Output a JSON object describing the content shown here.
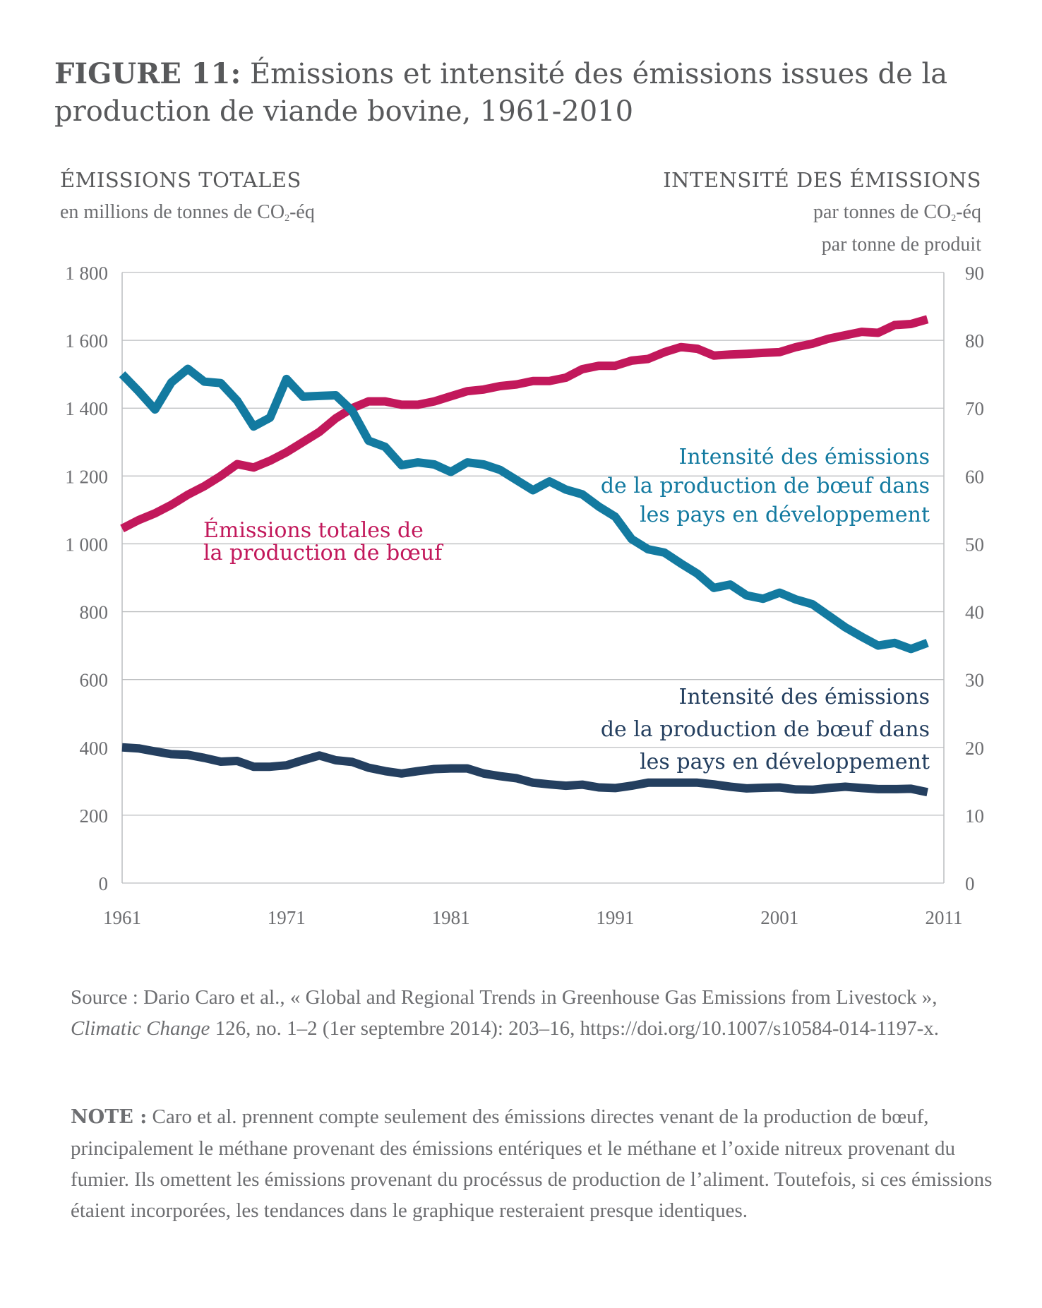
{
  "title_prefix": "FIGURE 11:",
  "title_main": "Émissions et intensité des émissions issues de la production de viande bovine, 1961-2010",
  "left_axis": {
    "heading": "ÉMISSIONS TOTALES",
    "unit_before": "en millions de tonnes de CO",
    "unit_sub": "2",
    "unit_after": "-éq"
  },
  "right_axis": {
    "heading": "INTENSITÉ DES ÉMISSIONS",
    "unit_line1_before": "par tonnes de CO",
    "unit_line1_sub": "2",
    "unit_line1_after": "-éq",
    "unit_line2": "par tonne de produit"
  },
  "source": {
    "prefix": "Source : Dario Caro et al., « Global and Regional Trends in Greenhouse Gas Emissions from Livestock », ",
    "journal": "Climatic Change",
    "suffix": " 126, no. 1–2 (1er septembre 2014): 203–16, https://doi.org/10.1007/s10584-014-1197-x."
  },
  "note": {
    "label": "NOTE :",
    "text": " Caro et al. prennent compte seulement des émissions directes venant de la production de bœuf, principalement le méthane provenant des émissions entériques et le méthane et l’oxide nitreux provenant du fumier. Ils omettent les émissions provenant du procéssus de production de l’aliment. Toutefois, si ces émissions étaient incorporées, les tendances dans le graphique resteraient presque identiques."
  },
  "chart_data": {
    "type": "line",
    "x_ticks": [
      "1961",
      "1971",
      "1981",
      "1991",
      "2001",
      "2011"
    ],
    "xlim": [
      1961,
      2011
    ],
    "y_left": {
      "ylim": [
        0,
        1800
      ],
      "ticks": [
        "0",
        "200",
        "400",
        "600",
        "800",
        "1 000",
        "1 200",
        "1 400",
        "1 600",
        "1 800"
      ]
    },
    "y_right": {
      "ylim": [
        0,
        90
      ],
      "ticks": [
        "0",
        "10",
        "20",
        "30",
        "40",
        "50",
        "60",
        "70",
        "80",
        "90"
      ]
    },
    "grid": true,
    "colors": {
      "total": "#c2185b",
      "developing": "#137aa0",
      "developed": "#243f5f",
      "grid": "#bcbec0",
      "axis": "#58595b"
    },
    "series": [
      {
        "name": "Émissions totales de la production de bœuf",
        "axis": "left",
        "color": "#c2185b",
        "x": [
          1961,
          1962,
          1963,
          1964,
          1965,
          1966,
          1967,
          1968,
          1969,
          1970,
          1971,
          1972,
          1973,
          1974,
          1975,
          1976,
          1977,
          1978,
          1979,
          1980,
          1981,
          1982,
          1983,
          1984,
          1985,
          1986,
          1987,
          1988,
          1989,
          1990,
          1991,
          1992,
          1993,
          1994,
          1995,
          1996,
          1997,
          1998,
          1999,
          2000,
          2001,
          2002,
          2003,
          2004,
          2005,
          2006,
          2007,
          2008,
          2009,
          2010
        ],
        "values": [
          1045,
          1070,
          1090,
          1115,
          1145,
          1170,
          1200,
          1235,
          1225,
          1245,
          1270,
          1300,
          1330,
          1370,
          1400,
          1420,
          1420,
          1410,
          1410,
          1420,
          1435,
          1450,
          1455,
          1465,
          1470,
          1480,
          1480,
          1490,
          1515,
          1525,
          1525,
          1540,
          1545,
          1565,
          1580,
          1575,
          1555,
          1558,
          1560,
          1563,
          1565,
          1580,
          1590,
          1605,
          1615,
          1625,
          1622,
          1645,
          1648,
          1662
        ]
      },
      {
        "name": "Intensité des émissions de la production de bœuf dans les pays en développement",
        "axis": "right",
        "color": "#137aa0",
        "x": [
          1961,
          1962,
          1963,
          1964,
          1965,
          1966,
          1967,
          1968,
          1969,
          1970,
          1971,
          1972,
          1973,
          1974,
          1975,
          1976,
          1977,
          1978,
          1979,
          1980,
          1981,
          1982,
          1983,
          1984,
          1985,
          1986,
          1987,
          1988,
          1989,
          1990,
          1991,
          1992,
          1993,
          1994,
          1995,
          1996,
          1997,
          1998,
          1999,
          2000,
          2001,
          2002,
          2003,
          2004,
          2005,
          2006,
          2007,
          2008,
          2009,
          2010
        ],
        "values": [
          75.0,
          72.5,
          69.8,
          73.8,
          75.8,
          73.9,
          73.7,
          71.1,
          67.3,
          68.6,
          74.3,
          71.7,
          71.8,
          71.9,
          69.6,
          65.2,
          64.3,
          61.6,
          62.0,
          61.7,
          60.6,
          62.0,
          61.7,
          60.9,
          59.4,
          57.9,
          59.2,
          58.0,
          57.3,
          55.5,
          54.0,
          50.7,
          49.2,
          48.7,
          47.1,
          45.6,
          43.5,
          44.0,
          42.4,
          41.9,
          42.8,
          41.8,
          41.1,
          39.4,
          37.7,
          36.3,
          35.0,
          35.4,
          34.5,
          35.4
        ]
      },
      {
        "name": "Intensité des émissions de la production de bœuf dans les pays en développement",
        "axis": "left",
        "color": "#243f5f",
        "x": [
          1961,
          1962,
          1963,
          1964,
          1965,
          1966,
          1967,
          1968,
          1969,
          1970,
          1971,
          1972,
          1973,
          1974,
          1975,
          1976,
          1977,
          1978,
          1979,
          1980,
          1981,
          1982,
          1983,
          1984,
          1985,
          1986,
          1987,
          1988,
          1989,
          1990,
          1991,
          1992,
          1993,
          1994,
          1995,
          1996,
          1997,
          1998,
          1999,
          2000,
          2001,
          2002,
          2003,
          2004,
          2005,
          2006,
          2007,
          2008,
          2009,
          2010
        ],
        "values": [
          400,
          397,
          388,
          380,
          378,
          369,
          358,
          360,
          343,
          343,
          347,
          362,
          376,
          362,
          357,
          340,
          330,
          323,
          330,
          336,
          338,
          338,
          323,
          315,
          309,
          296,
          291,
          287,
          290,
          282,
          280,
          287,
          296,
          296,
          296,
          296,
          291,
          284,
          279,
          281,
          282,
          276,
          275,
          280,
          284,
          280,
          277,
          277,
          278,
          268
        ]
      }
    ],
    "annotations": [
      {
        "series": 0,
        "lines": [
          "Émissions totales de",
          "la production de bœuf"
        ]
      },
      {
        "series": 1,
        "lines": [
          "Intensité des émissions",
          "de la production de bœuf dans",
          "les pays en développement"
        ]
      },
      {
        "series": 2,
        "lines": [
          "Intensité des émissions",
          "de la production de bœuf dans",
          "les pays en développement"
        ]
      }
    ]
  }
}
